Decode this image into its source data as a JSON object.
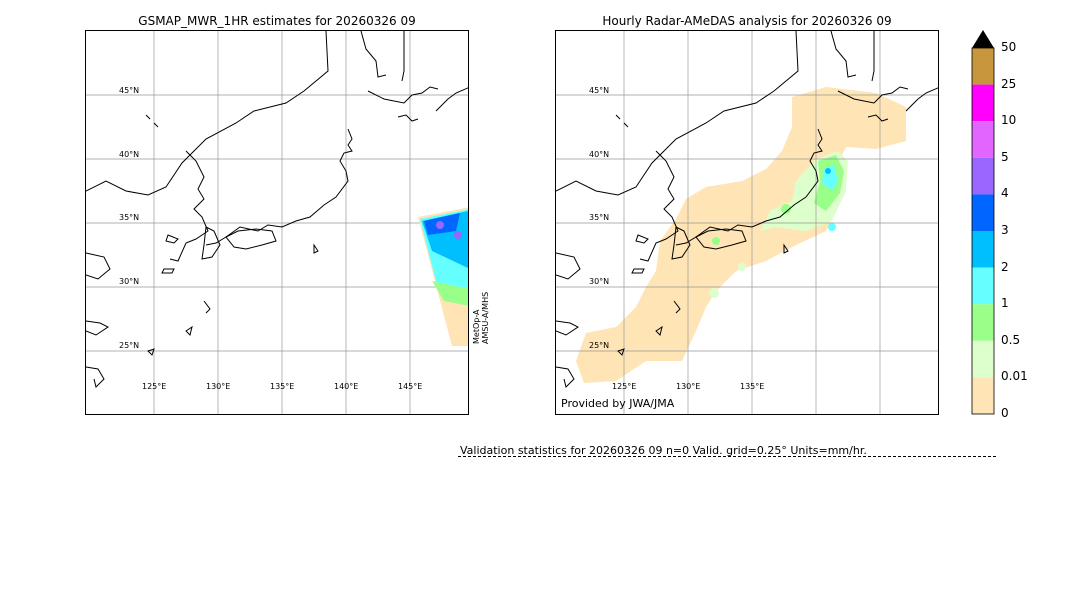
{
  "left_map": {
    "title": "GSMAP_MWR_1HR estimates for 20260326 09",
    "lat_labels": [
      "45°N",
      "40°N",
      "35°N",
      "30°N",
      "25°N"
    ],
    "lon_labels": [
      "125°E",
      "130°E",
      "135°E",
      "140°E",
      "145°E"
    ],
    "satellite_label": "MetOp-A",
    "sensor_label": "AMSU-A/MHS"
  },
  "right_map": {
    "title": "Hourly Radar-AMeDAS analysis for 20260326 09",
    "lat_labels": [
      "45°N",
      "40°N",
      "35°N",
      "30°N",
      "25°N"
    ],
    "lon_labels": [
      "125°E",
      "130°E",
      "135°E"
    ],
    "credit": "Provided by JWA/JMA"
  },
  "colorbar": {
    "labels": [
      "50",
      "25",
      "10",
      "5",
      "4",
      "3",
      "2",
      "1",
      "0.5",
      "0.01",
      "0"
    ],
    "colors": [
      "#c8963c",
      "#ff00ff",
      "#e066ff",
      "#9966ff",
      "#0066ff",
      "#00bfff",
      "#66ffff",
      "#99ff88",
      "#ddffcc",
      "#ffe4b5"
    ],
    "extend_color": "#000000"
  },
  "validation": {
    "text": "Validation statistics for 20260326 09  n=0 Valid. grid=0.25° Units=mm/hr."
  }
}
